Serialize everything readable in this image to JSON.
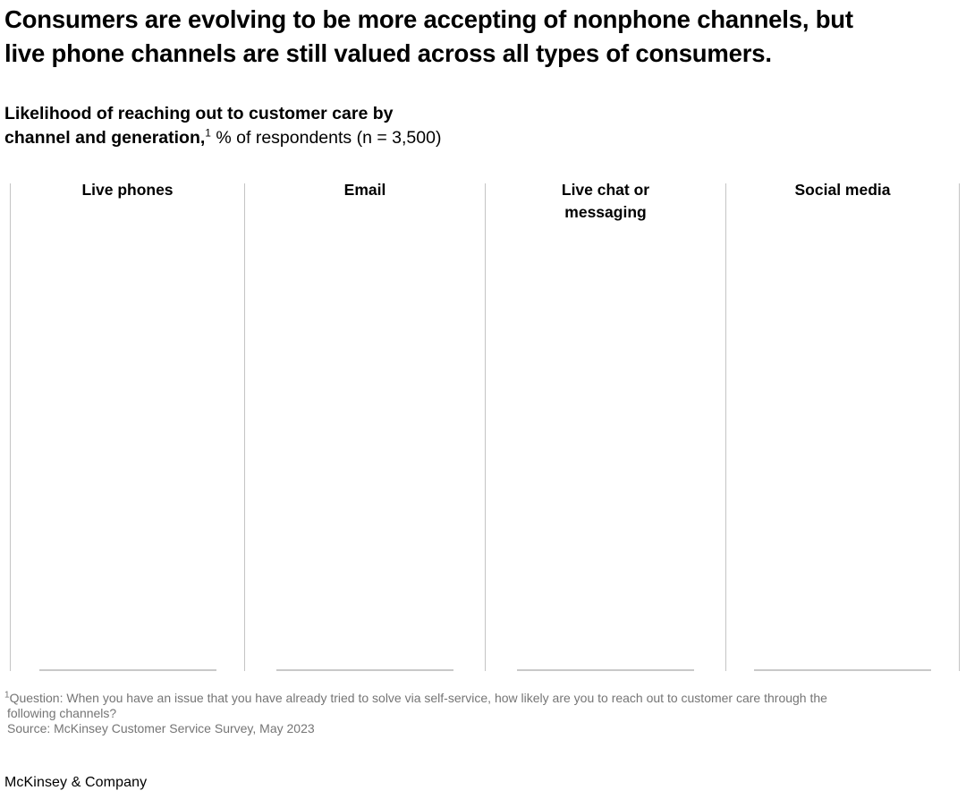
{
  "title": {
    "line1": "Consumers are evolving to be more accepting of nonphone channels, but",
    "line2": "live phone channels are still valued across all types of consumers."
  },
  "subtitle": {
    "line1": "Likelihood of reaching out to customer care by",
    "line2_bold": "channel and generation,",
    "line2_sup": "1",
    "line2_rest": " % of respondents (n = 3,500)"
  },
  "chart": {
    "panels": [
      {
        "label": "Live phones"
      },
      {
        "label": "Email"
      },
      {
        "label": "Live chat or messaging"
      },
      {
        "label": "Social media"
      }
    ]
  },
  "chart_data": {
    "type": "bar",
    "title": "Likelihood of reaching out to customer care by channel and generation, % of respondents (n = 3,500)",
    "categories": [
      "Live phones",
      "Email",
      "Live chat or messaging",
      "Social media"
    ],
    "series": [],
    "layout": "4 small-multiple panels separated by vertical divider lines, each with a short bottom baseline; panels render empty in this screenshot — no bars, data values, tick labels, axes numbers, or legend are visible"
  },
  "footnote": {
    "sup": "1",
    "line1_rest": "Question: When you have an issue that you have already tried to solve via self-service, how likely are you to reach out to customer care through the",
    "line2": "following channels?",
    "line3": "Source: McKinsey Customer Service Survey, May 2023"
  },
  "branding": {
    "logo": "McKinsey & Company"
  },
  "colors": {
    "background": "#ffffff",
    "text": "#000000",
    "divider": "#c4c4c4",
    "baseline": "#c9c9c9",
    "footnote_text": "#757575"
  }
}
